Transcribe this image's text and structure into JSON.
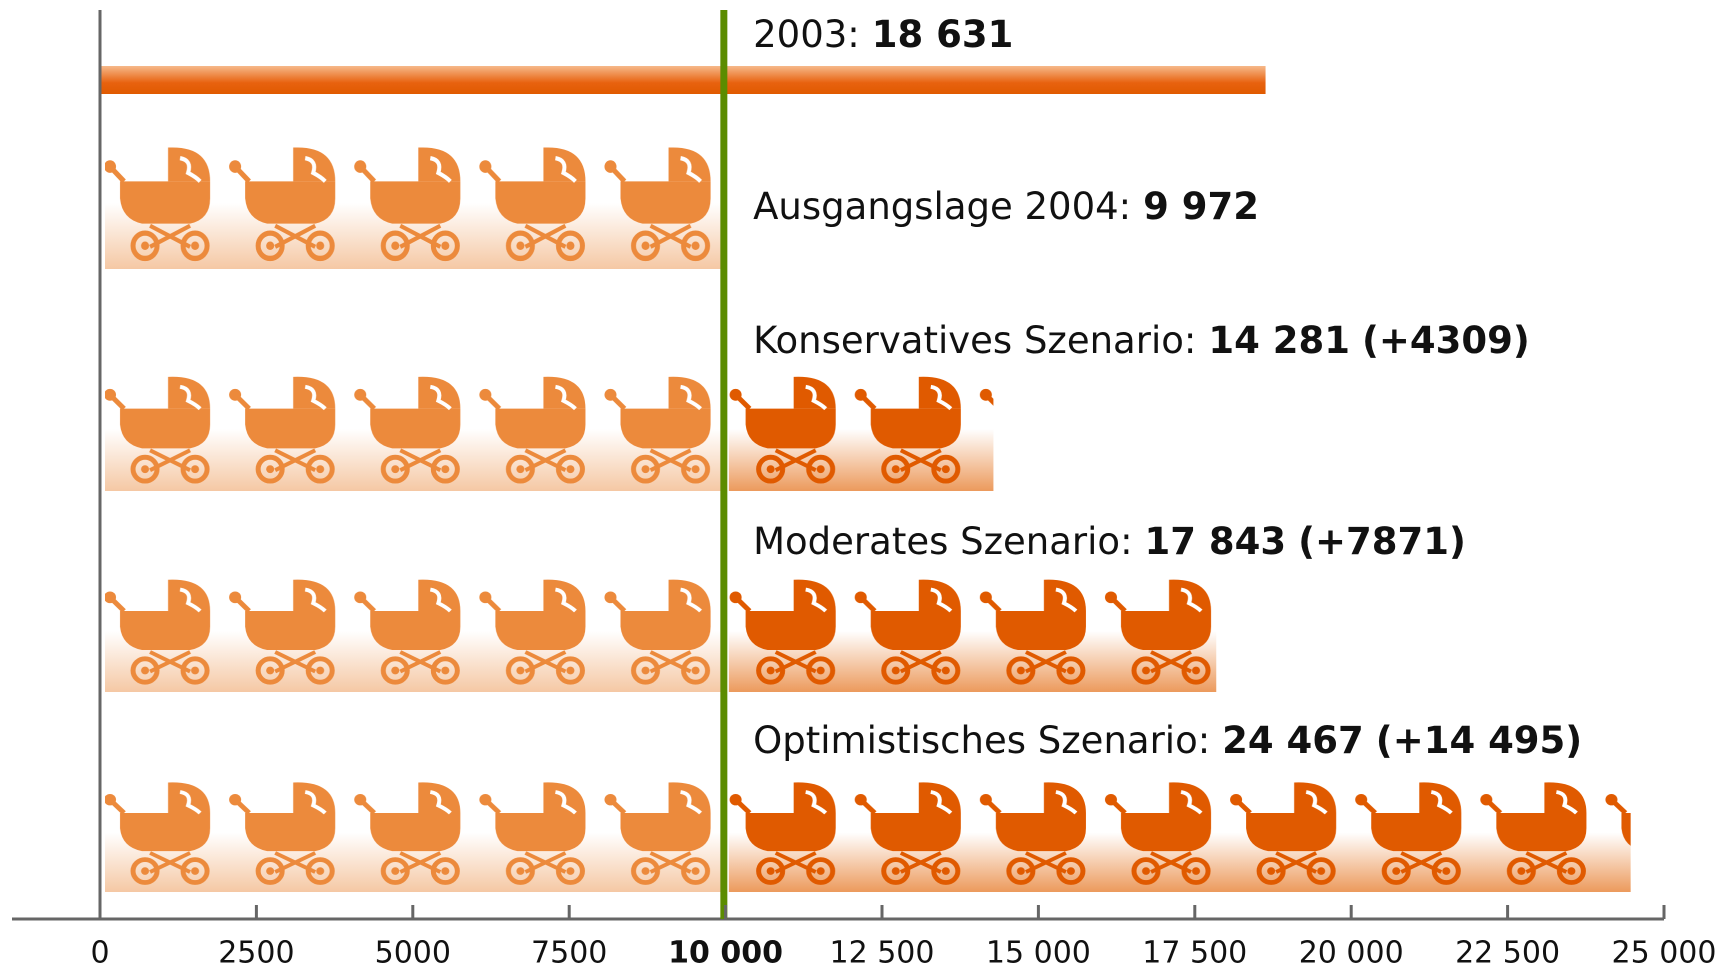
{
  "chart_data": {
    "type": "bar",
    "orientation": "horizontal",
    "categories": [
      "2003",
      "Ausgangslage 2004",
      "Konservatives Szenario",
      "Moderates Szenario",
      "Optimistisches Szenario"
    ],
    "separator": ":",
    "values": [
      18631,
      9972,
      14281,
      17843,
      24467
    ],
    "value_labels": [
      "18 631",
      "9 972",
      "14 281",
      "17 843",
      "24 467"
    ],
    "increase": [
      null,
      null,
      4309,
      7871,
      14495
    ],
    "increase_labels": [
      null,
      null,
      "(+4309)",
      "(+7871)",
      "(+14 495)"
    ],
    "color": "#ec8a3c",
    "increase_color": "#e05a00",
    "reference_color": "#5b8c00",
    "xlim": [
      0,
      25000
    ],
    "xticks": [
      0,
      2500,
      5000,
      7500,
      {
        "value": 10000,
        "label": "10 000"
      },
      {
        "value": 12500,
        "label": "12 500"
      },
      {
        "value": 15000,
        "label": "15 000"
      },
      {
        "value": 17500,
        "label": "17 500"
      },
      {
        "value": 20000,
        "label": "20 000"
      },
      {
        "value": 22500,
        "label": "22 500"
      },
      {
        "value": 25000,
        "label": "25 000"
      }
    ],
    "grid": false
  }
}
